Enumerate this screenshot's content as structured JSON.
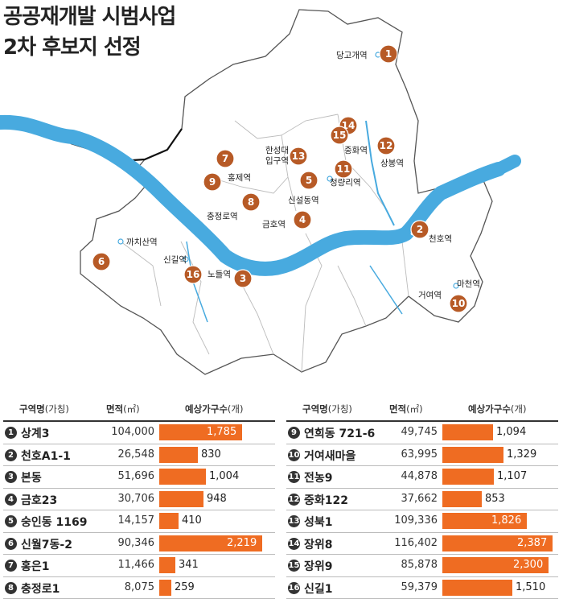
{
  "title": {
    "line1": "공공재개발 시범사업",
    "line2": "2차 후보지 선정"
  },
  "colors": {
    "river": "#48aadf",
    "marker": "#b75a26",
    "bar": "#ef6c22"
  },
  "map": {
    "markers": [
      "1",
      "2",
      "3",
      "4",
      "5",
      "6",
      "7",
      "8",
      "9",
      "10",
      "11",
      "12",
      "13",
      "14",
      "15",
      "16"
    ],
    "stations": [
      "당고개역",
      "천호역",
      "노들역",
      "금호역",
      "신설동역",
      "까치산역",
      "홍제역",
      "충정로역",
      "마천역",
      "거여역",
      "청량리역",
      "상봉역",
      "한성대입구역",
      "중화역",
      "신길역"
    ],
    "station_split": {
      "hansung_line1": "한성대",
      "hansung_line2": "입구역"
    }
  },
  "table": {
    "headers": {
      "district": "구역명",
      "district_note": "(가칭)",
      "area": "면적",
      "area_unit": "(㎡)",
      "households": "예상가구수",
      "households_unit": "(개)"
    },
    "max_value": 2400,
    "rows": [
      {
        "no": "1",
        "name": "상계3",
        "area": "104,000",
        "value": 1785,
        "label": "1,785"
      },
      {
        "no": "2",
        "name": "천호A1-1",
        "area": "26,548",
        "value": 830,
        "label": "830"
      },
      {
        "no": "3",
        "name": "본동",
        "area": "51,696",
        "value": 1004,
        "label": "1,004"
      },
      {
        "no": "4",
        "name": "금호23",
        "area": "30,706",
        "value": 948,
        "label": "948"
      },
      {
        "no": "5",
        "name": "숭인동 1169",
        "area": "14,157",
        "value": 410,
        "label": "410"
      },
      {
        "no": "6",
        "name": "신월7동-2",
        "area": "90,346",
        "value": 2219,
        "label": "2,219"
      },
      {
        "no": "7",
        "name": "홍은1",
        "area": "11,466",
        "value": 341,
        "label": "341"
      },
      {
        "no": "8",
        "name": "충정로1",
        "area": "8,075",
        "value": 259,
        "label": "259"
      },
      {
        "no": "9",
        "name": "연희동 721-6",
        "area": "49,745",
        "value": 1094,
        "label": "1,094"
      },
      {
        "no": "10",
        "name": "거여새마을",
        "area": "63,995",
        "value": 1329,
        "label": "1,329"
      },
      {
        "no": "11",
        "name": "전농9",
        "area": "44,878",
        "value": 1107,
        "label": "1,107"
      },
      {
        "no": "12",
        "name": "중화122",
        "area": "37,662",
        "value": 853,
        "label": "853"
      },
      {
        "no": "13",
        "name": "성북1",
        "area": "109,336",
        "value": 1826,
        "label": "1,826"
      },
      {
        "no": "14",
        "name": "장위8",
        "area": "116,402",
        "value": 2387,
        "label": "2,387"
      },
      {
        "no": "15",
        "name": "장위9",
        "area": "85,878",
        "value": 2300,
        "label": "2,300"
      },
      {
        "no": "16",
        "name": "신길1",
        "area": "59,379",
        "value": 1510,
        "label": "1,510"
      }
    ]
  }
}
